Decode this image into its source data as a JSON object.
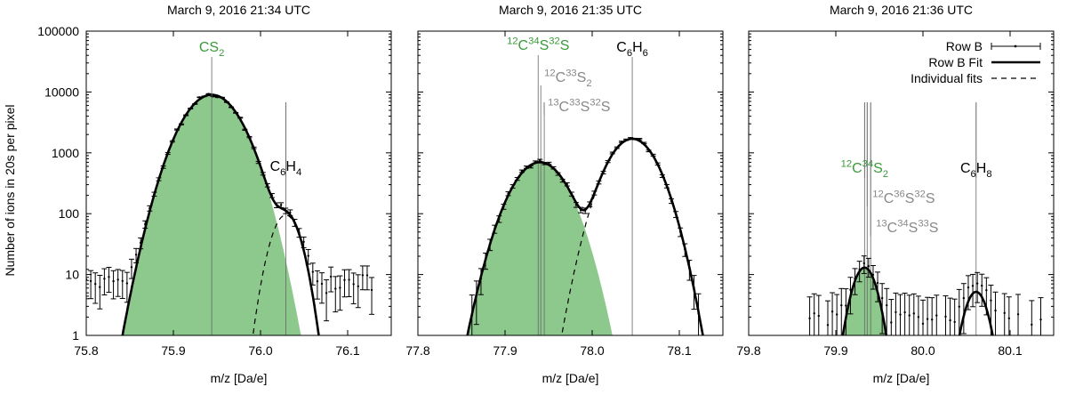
{
  "ylabel": "Number of ions in 20s per pixel",
  "colors": {
    "fill": "#8dc98c",
    "green_label": "#3a9a3a",
    "gray_label": "#888888",
    "line": "#000000"
  },
  "legend": {
    "placement": "top-right",
    "entries": [
      {
        "label": "Row B",
        "style": "errorbar"
      },
      {
        "label": "Row B Fit",
        "style": "thick-line"
      },
      {
        "label": "Individual fits",
        "style": "dashed-line"
      }
    ]
  },
  "chart_data": [
    {
      "type": "line",
      "title": "March 9, 2016 21:34 UTC",
      "xlabel": "m/z [Da/e]",
      "ylabel": "Number of ions in 20s per pixel",
      "yscale": "log",
      "xlim": [
        75.8,
        76.15
      ],
      "ylim": [
        1,
        100000
      ],
      "xticks": [
        75.8,
        75.9,
        76.0,
        76.1
      ],
      "xtick_labels": [
        "75.8",
        "75.9",
        "76.0",
        "76.1"
      ],
      "yticks": [
        1,
        10,
        100,
        1000,
        10000,
        100000
      ],
      "ytick_labels": [
        "1",
        "10",
        "100",
        "1000",
        "10000",
        "100000"
      ],
      "peaks": [
        {
          "center": 75.944,
          "amp": 9000,
          "sigma": 0.024,
          "fill": true
        },
        {
          "center": 76.029,
          "amp": 95,
          "sigma": 0.0125,
          "fill": false
        }
      ],
      "data_range": [
        75.8,
        76.13
      ],
      "data_step": 0.0052,
      "background": 8,
      "annotations": [
        {
          "parts": [
            [
              "CS",
              "n"
            ],
            [
              "2",
              "sub"
            ]
          ],
          "color": "green",
          "x": 75.944
        },
        {
          "parts": [
            [
              "C",
              "n"
            ],
            [
              "6",
              "sub"
            ],
            [
              "H",
              "n"
            ],
            [
              "4",
              "sub"
            ]
          ],
          "color": "black",
          "x": 76.029
        }
      ]
    },
    {
      "type": "line",
      "title": "March 9, 2016 21:35 UTC",
      "xlabel": "m/z [Da/e]",
      "yscale": "log",
      "xlim": [
        77.8,
        78.15
      ],
      "ylim": [
        1,
        100000
      ],
      "xticks": [
        77.8,
        77.9,
        78.0,
        78.1
      ],
      "xtick_labels": [
        "77.8",
        "77.9",
        "78.0",
        "78.1"
      ],
      "peaks": [
        {
          "center": 77.94,
          "amp": 700,
          "sigma": 0.023,
          "fill": true
        },
        {
          "center": 78.046,
          "amp": 1700,
          "sigma": 0.021,
          "fill": false
        }
      ],
      "data_range": [
        77.862,
        78.125
      ],
      "data_step": 0.0052,
      "background": 0,
      "annotations": [
        {
          "parts": [
            [
              "12",
              "sup"
            ],
            [
              "C",
              "n"
            ],
            [
              "34",
              "sup"
            ],
            [
              "S",
              "n"
            ],
            [
              "32",
              "sup"
            ],
            [
              "S",
              "n"
            ]
          ],
          "color": "green",
          "x": 77.938
        },
        {
          "parts": [
            [
              "C",
              "n"
            ],
            [
              "6",
              "sub"
            ],
            [
              "H",
              "n"
            ],
            [
              "6",
              "sub"
            ]
          ],
          "color": "black",
          "x": 78.046
        },
        {
          "parts": [
            [
              "12",
              "sup"
            ],
            [
              "C",
              "n"
            ],
            [
              "33",
              "sup"
            ],
            [
              "S",
              "n"
            ],
            [
              "2",
              "sub"
            ]
          ],
          "color": "gray",
          "x": 77.941
        },
        {
          "parts": [
            [
              "13",
              "sup"
            ],
            [
              "C",
              "n"
            ],
            [
              "33",
              "sup"
            ],
            [
              "S",
              "n"
            ],
            [
              "32",
              "sup"
            ],
            [
              "S",
              "n"
            ]
          ],
          "color": "gray",
          "x": 77.945
        }
      ]
    },
    {
      "type": "line",
      "title": "March 9, 2016 21:36 UTC",
      "xlabel": "m/z [Da/e]",
      "yscale": "log",
      "xlim": [
        79.8,
        80.15
      ],
      "ylim": [
        1,
        100000
      ],
      "xticks": [
        79.8,
        79.9,
        80.0,
        80.1
      ],
      "xtick_labels": [
        "79.8",
        "79.9",
        "80.0",
        "80.1"
      ],
      "peaks": [
        {
          "center": 79.933,
          "amp": 13,
          "sigma": 0.011,
          "fill": true
        },
        {
          "center": 80.061,
          "amp": 5.2,
          "sigma": 0.0105,
          "fill": false
        }
      ],
      "data_range": [
        79.87,
        80.14
      ],
      "data_step": 0.0052,
      "background": 2,
      "annotations": [
        {
          "parts": [
            [
              "12",
              "sup"
            ],
            [
              "C",
              "n"
            ],
            [
              "34",
              "sup"
            ],
            [
              "S",
              "n"
            ],
            [
              "2",
              "sub"
            ]
          ],
          "color": "green",
          "x": 79.933
        },
        {
          "parts": [
            [
              "C",
              "n"
            ],
            [
              "6",
              "sub"
            ],
            [
              "H",
              "n"
            ],
            [
              "8",
              "sub"
            ]
          ],
          "color": "black",
          "x": 80.061
        },
        {
          "parts": [
            [
              "12",
              "sup"
            ],
            [
              "C",
              "n"
            ],
            [
              "36",
              "sup"
            ],
            [
              "S",
              "n"
            ],
            [
              "32",
              "sup"
            ],
            [
              "S",
              "n"
            ]
          ],
          "color": "gray",
          "x": 79.936
        },
        {
          "parts": [
            [
              "13",
              "sup"
            ],
            [
              "C",
              "n"
            ],
            [
              "34",
              "sup"
            ],
            [
              "S",
              "n"
            ],
            [
              "33",
              "sup"
            ],
            [
              "S",
              "n"
            ]
          ],
          "color": "gray",
          "x": 79.94
        }
      ]
    }
  ]
}
